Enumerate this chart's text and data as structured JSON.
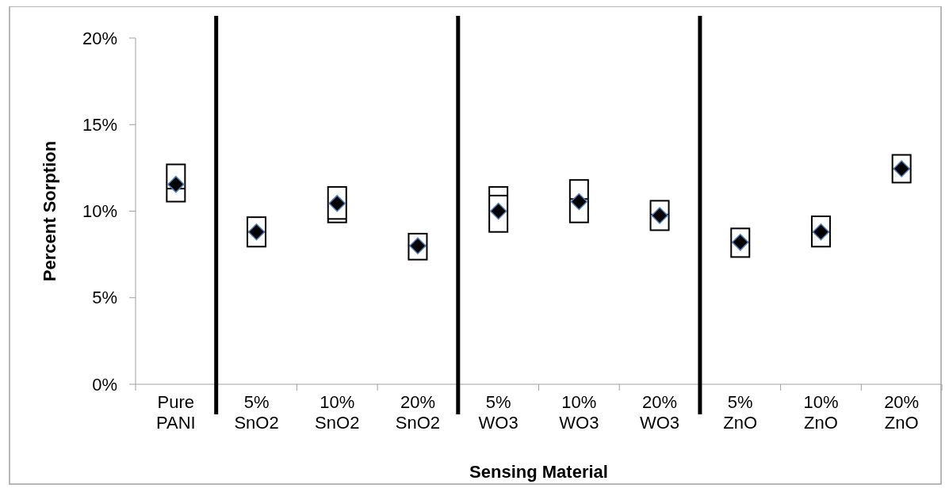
{
  "chart_data": {
    "type": "box",
    "xlabel": "Sensing Material",
    "ylabel": "Percent Sorption",
    "categories": [
      "Pure PANI",
      "5% SnO2",
      "10% SnO2",
      "20% SnO2",
      "5% WO3",
      "10% WO3",
      "20% WO3",
      "5% ZnO",
      "10% ZnO",
      "20% ZnO"
    ],
    "color": "#000000",
    "boxes": [
      {
        "low": 10.55,
        "q1": 10.55,
        "median": 11.3,
        "q3": 12.7,
        "high": 12.7,
        "mean": 11.55
      },
      {
        "low": 7.95,
        "q1": 7.95,
        "median": 8.8,
        "q3": 9.65,
        "high": 9.65,
        "mean": 8.8
      },
      {
        "low": 9.35,
        "q1": 9.35,
        "median": 9.55,
        "q3": 11.4,
        "high": 11.4,
        "mean": 10.45
      },
      {
        "low": 7.2,
        "q1": 7.2,
        "median": 8.0,
        "q3": 8.7,
        "high": 8.7,
        "mean": 8.0
      },
      {
        "low": 8.8,
        "q1": 8.8,
        "median": 10.9,
        "q3": 11.4,
        "high": 11.4,
        "mean": 10.0
      },
      {
        "low": 9.35,
        "q1": 9.35,
        "median": 10.7,
        "q3": 11.8,
        "high": 11.8,
        "mean": 10.55
      },
      {
        "low": 8.9,
        "q1": 8.9,
        "median": 9.8,
        "q3": 10.6,
        "high": 10.6,
        "mean": 9.75
      },
      {
        "low": 7.35,
        "q1": 7.35,
        "median": 8.2,
        "q3": 9.0,
        "high": 9.0,
        "mean": 8.2
      },
      {
        "low": 7.95,
        "q1": 7.95,
        "median": 8.8,
        "q3": 9.7,
        "high": 9.7,
        "mean": 8.8
      },
      {
        "low": 11.65,
        "q1": 11.65,
        "median": 12.45,
        "q3": 13.25,
        "high": 13.25,
        "mean": 12.45
      }
    ],
    "ylim": [
      0,
      20
    ],
    "yticks": [
      {
        "value": 0,
        "label": "0%"
      },
      {
        "value": 5,
        "label": "5%"
      },
      {
        "value": 10,
        "label": "10%"
      },
      {
        "value": 15,
        "label": "15%"
      },
      {
        "value": 20,
        "label": "20%"
      }
    ],
    "grid": false
  }
}
